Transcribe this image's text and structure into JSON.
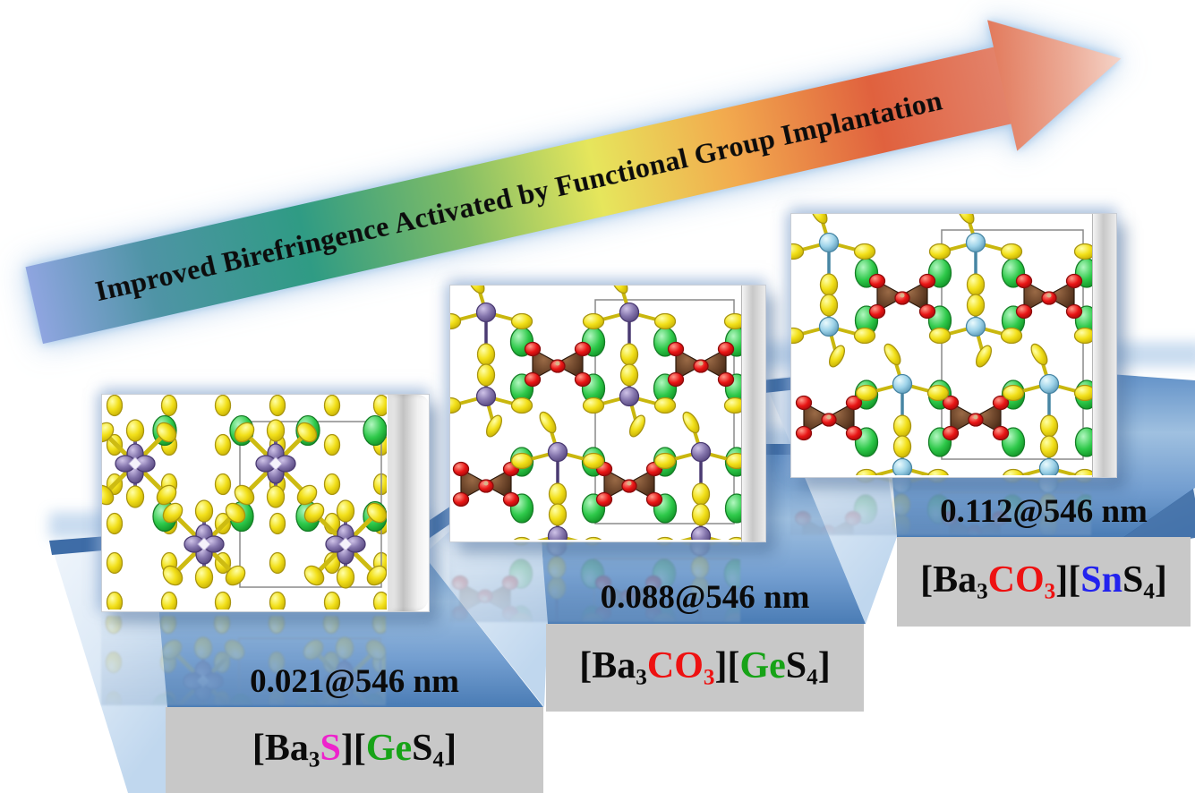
{
  "figure": {
    "arrow": {
      "label": "Improved Birefringence Activated by Functional Group Implantation",
      "gradient_colors": [
        "#8fa5e0",
        "#2f9b84",
        "#7fbc66",
        "#e6e65c",
        "#f2aa4e",
        "#e0613e",
        "#ecab97"
      ]
    },
    "steps": [
      {
        "birefringence": "0.021@546 nm",
        "birefringence_value": 0.021,
        "wavelength_nm": 546,
        "formula_plain": "[Ba3S][GeS4]",
        "formula": [
          {
            "t": "[Ba"
          },
          {
            "t": "3",
            "sub": true
          },
          {
            "t": "S",
            "color": "#ee22cc"
          },
          {
            "t": "]["
          },
          {
            "t": "Ge",
            "color": "#17a317"
          },
          {
            "t": "S"
          },
          {
            "t": "4",
            "sub": true
          },
          {
            "t": "]"
          }
        ],
        "structure_type": "star",
        "atoms_shown": [
          "S",
          "Ba",
          "Ge"
        ]
      },
      {
        "birefringence": "0.088@546 nm",
        "birefringence_value": 0.088,
        "wavelength_nm": 546,
        "formula_plain": "[Ba3CO3][GeS4]",
        "formula": [
          {
            "t": "[Ba"
          },
          {
            "t": "3",
            "sub": true
          },
          {
            "t": "CO",
            "color": "#ee1111"
          },
          {
            "t": "3",
            "sub": true,
            "color": "#ee1111"
          },
          {
            "t": "]["
          },
          {
            "t": "Ge",
            "color": "#17a317"
          },
          {
            "t": "S"
          },
          {
            "t": "4",
            "sub": true
          },
          {
            "t": "]"
          }
        ],
        "structure_type": "chain",
        "metal": "Ge",
        "atoms_shown": [
          "S",
          "Ba",
          "Ge",
          "C",
          "O"
        ]
      },
      {
        "birefringence": "0.112@546 nm",
        "birefringence_value": 0.112,
        "wavelength_nm": 546,
        "formula_plain": "[Ba3CO3][SnS4]",
        "formula": [
          {
            "t": "[Ba"
          },
          {
            "t": "3",
            "sub": true
          },
          {
            "t": "CO",
            "color": "#ee1111"
          },
          {
            "t": "3",
            "sub": true,
            "color": "#ee1111"
          },
          {
            "t": "]["
          },
          {
            "t": "Sn",
            "color": "#2222ee"
          },
          {
            "t": "S"
          },
          {
            "t": "4",
            "sub": true
          },
          {
            "t": "]"
          }
        ],
        "structure_type": "chain",
        "metal": "Sn",
        "atoms_shown": [
          "S",
          "Ba",
          "Sn",
          "C",
          "O"
        ]
      }
    ],
    "atom_colors": {
      "S": "#f2e01a",
      "Ba": "#2ec94a",
      "Ge": "#8576ad",
      "Sn": "#9ed3e9",
      "C": "#5e3a22",
      "O": "#e81414"
    },
    "platform_colors": {
      "floor": "#6f9cd0",
      "side": "#dce9f6",
      "label_box": "#c8c8c8"
    }
  }
}
